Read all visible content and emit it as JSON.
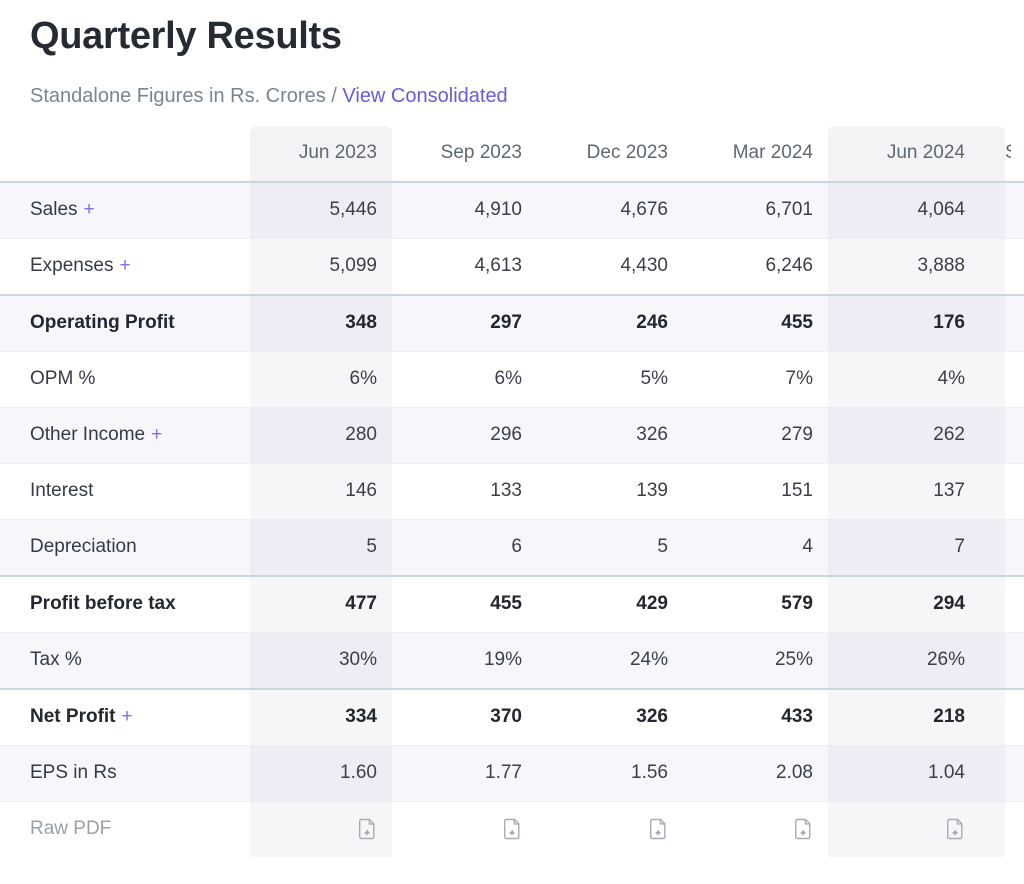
{
  "header": {
    "title": "Quarterly Results",
    "subtitle": "Standalone Figures in Rs. Crores",
    "separator": "/",
    "link_label": "View Consolidated"
  },
  "table": {
    "columns": [
      "Jun 2023",
      "Sep 2023",
      "Dec 2023",
      "Mar 2024",
      "Jun 2024"
    ],
    "next_column_partial_label": "S",
    "highlighted_columns": [
      "Jun 2023",
      "Jun 2024"
    ],
    "rows": [
      {
        "label": "Sales",
        "expand": "+",
        "values": [
          "5,446",
          "4,910",
          "4,676",
          "6,701",
          "4,064"
        ]
      },
      {
        "label": "Expenses",
        "expand": "+",
        "values": [
          "5,099",
          "4,613",
          "4,430",
          "6,246",
          "3,888"
        ]
      },
      {
        "label": "Operating Profit",
        "expand": "",
        "values": [
          "348",
          "297",
          "246",
          "455",
          "176"
        ]
      },
      {
        "label": "OPM %",
        "expand": "",
        "values": [
          "6%",
          "6%",
          "5%",
          "7%",
          "4%"
        ]
      },
      {
        "label": "Other Income",
        "expand": "+",
        "values": [
          "280",
          "296",
          "326",
          "279",
          "262"
        ]
      },
      {
        "label": "Interest",
        "expand": "",
        "values": [
          "146",
          "133",
          "139",
          "151",
          "137"
        ]
      },
      {
        "label": "Depreciation",
        "expand": "",
        "values": [
          "5",
          "6",
          "5",
          "4",
          "7"
        ]
      },
      {
        "label": "Profit before tax",
        "expand": "",
        "values": [
          "477",
          "455",
          "429",
          "579",
          "294"
        ]
      },
      {
        "label": "Tax %",
        "expand": "",
        "values": [
          "30%",
          "19%",
          "24%",
          "25%",
          "26%"
        ]
      },
      {
        "label": "Net Profit",
        "expand": "+",
        "values": [
          "334",
          "370",
          "326",
          "433",
          "218"
        ]
      },
      {
        "label": "EPS in Rs",
        "expand": "",
        "values": [
          "1.60",
          "1.77",
          "1.56",
          "2.08",
          "1.04"
        ]
      },
      {
        "label": "Raw PDF",
        "expand": "",
        "values": [
          "",
          "",
          "",
          "",
          ""
        ]
      }
    ],
    "pdf_row_label": "Raw PDF"
  },
  "colors": {
    "link": "#645ce6",
    "plus": "#7c6ff0",
    "stripe": "#f6f6fb",
    "strong_border": "#ccd5dc",
    "header_text": "#5d6873",
    "body_text": "#3a3f49"
  }
}
